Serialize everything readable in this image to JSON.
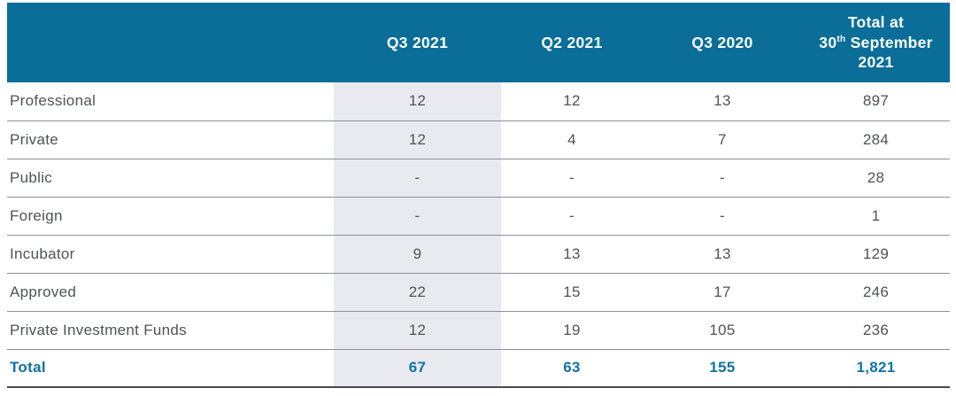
{
  "colors": {
    "header_bg": "#0a6e98",
    "header_text": "#ffffff",
    "highlight_col": "#e8eaef",
    "body_text": "#505254",
    "total_text": "#0f73a4",
    "gridline": "#8e9092",
    "bottom_border": "#48494b"
  },
  "header": {
    "row_label_col": "",
    "q3_2021": "Q3 2021",
    "q2_2021": "Q2 2021",
    "q3_2020": "Q3 2020",
    "total_line1": "Total at",
    "total_line2_pre": "30",
    "total_line2_sup": "th",
    "total_line2_post": " September",
    "total_line3": "2021"
  },
  "chart_data": {
    "type": "table",
    "columns": [
      "",
      "Q3 2021",
      "Q2 2021",
      "Q3 2020",
      "Total at 30th September 2021"
    ],
    "highlighted_column": "Q3 2021",
    "rows": [
      [
        "Professional",
        "12",
        "12",
        "13",
        "897"
      ],
      [
        "Private",
        "12",
        "4",
        "7",
        "284"
      ],
      [
        "Public",
        "-",
        "-",
        "-",
        "28"
      ],
      [
        "Foreign",
        "-",
        "-",
        "-",
        "1"
      ],
      [
        "Incubator",
        "9",
        "13",
        "13",
        "129"
      ],
      [
        "Approved",
        "22",
        "15",
        "17",
        "246"
      ],
      [
        "Private Investment Funds",
        "12",
        "19",
        "105",
        "236"
      ]
    ],
    "total_row": [
      "Total",
      "67",
      "63",
      "155",
      "1,821"
    ]
  }
}
